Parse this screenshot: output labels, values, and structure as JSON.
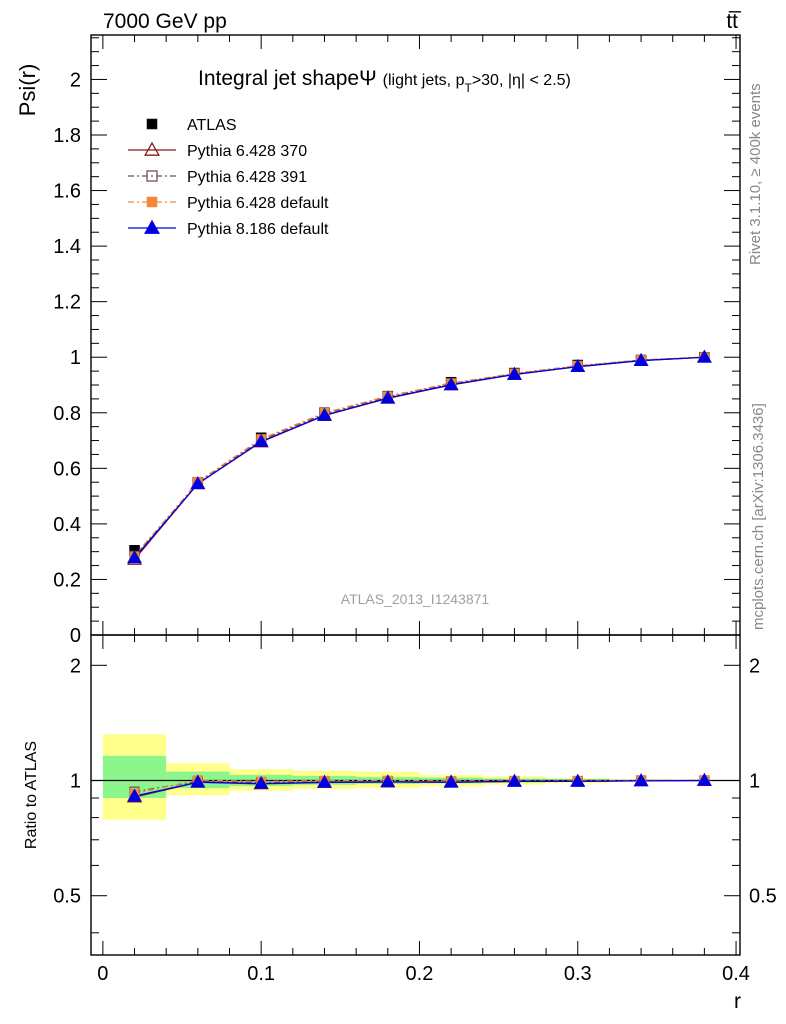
{
  "header": {
    "energy_label": "7000 GeV pp",
    "process_label": "tt̅"
  },
  "side_labels": {
    "rivet": "Rivet 3.1.10, ≥ 400k events",
    "mcplots": "mcplots.cern.ch [arXiv:1306.3436]"
  },
  "chart_data": {
    "type": "line",
    "title": "Integral jet shapeΨ",
    "subtitle": "(light jets, p",
    "subtitle_sub": "T",
    "subtitle_rest": ">30, |η| < 2.5)",
    "watermark": "ATLAS_2013_I1243871",
    "xlabel": "r",
    "ylabel": "Psi(r)",
    "ratio_ylabel": "Ratio to ATLAS",
    "xlim": [
      -0.0075,
      0.4025
    ],
    "ylim": [
      0,
      2.16
    ],
    "ratio_ylim": [
      0.35,
      2.4
    ],
    "x_ticks": [
      0,
      0.1,
      0.2,
      0.3,
      0.4
    ],
    "x_tick_labels": [
      "0",
      "0.1",
      "0.2",
      "0.3",
      "0.4"
    ],
    "y_ticks": [
      0,
      0.2,
      0.4,
      0.6,
      0.8,
      1,
      1.2,
      1.4,
      1.6,
      1.8,
      2
    ],
    "y_tick_labels": [
      "0",
      "0.2",
      "0.4",
      "0.6",
      "0.8",
      "1",
      "1.2",
      "1.4",
      "1.6",
      "1.8",
      "2"
    ],
    "ratio_ticks": [
      0.5,
      1,
      2
    ],
    "ratio_tick_labels": [
      "0.5",
      "1",
      "2"
    ],
    "x": [
      0.02,
      0.06,
      0.1,
      0.14,
      0.18,
      0.22,
      0.26,
      0.3,
      0.34,
      0.38
    ],
    "bin_edges": [
      0,
      0.04,
      0.08,
      0.12,
      0.16,
      0.2,
      0.24,
      0.28,
      0.32,
      0.36,
      0.4
    ],
    "data": {
      "name": "ATLAS",
      "values": [
        0.305,
        0.55,
        0.71,
        0.8,
        0.86,
        0.91,
        0.943,
        0.972,
        0.99,
        1.0
      ],
      "color": "#000000"
    },
    "series": [
      {
        "name": "Pythia 6.428 370",
        "values": [
          0.272,
          0.545,
          0.695,
          0.79,
          0.852,
          0.9,
          0.938,
          0.966,
          0.988,
          1.0
        ],
        "color": "#8b1a1a",
        "marker": "triangle-open",
        "dash": ""
      },
      {
        "name": "Pythia 6.428 391",
        "values": [
          0.285,
          0.548,
          0.702,
          0.796,
          0.857,
          0.905,
          0.94,
          0.968,
          0.99,
          1.0
        ],
        "color": "#7a4f4f",
        "marker": "square-open",
        "dash": "6,3,2,3"
      },
      {
        "name": "Pythia 6.428 default",
        "values": [
          0.282,
          0.552,
          0.706,
          0.8,
          0.86,
          0.907,
          0.942,
          0.97,
          0.99,
          1.0
        ],
        "color": "#f4873a",
        "marker": "square-filled",
        "dash": "6,3,2,3"
      },
      {
        "name": "Pythia 8.186 default",
        "values": [
          0.278,
          0.544,
          0.697,
          0.791,
          0.853,
          0.901,
          0.938,
          0.966,
          0.988,
          1.0
        ],
        "color": "#0000e0",
        "marker": "triangle-filled",
        "dash": ""
      }
    ],
    "ratio_series": [
      [
        0.905,
        0.99,
        0.98,
        0.988,
        0.991,
        0.99,
        0.995,
        0.995,
        0.998,
        1.0
      ],
      [
        0.935,
        0.995,
        0.99,
        0.995,
        0.997,
        0.995,
        0.997,
        0.997,
        1.0,
        1.0
      ],
      [
        0.925,
        1.003,
        0.995,
        1.0,
        1.0,
        0.998,
        0.998,
        0.998,
        1.0,
        1.0
      ],
      [
        0.91,
        0.99,
        0.982,
        0.989,
        0.992,
        0.99,
        0.995,
        0.995,
        0.998,
        1.0
      ]
    ],
    "band_inner": [
      [
        0.9,
        1.16
      ],
      [
        0.955,
        1.055
      ],
      [
        0.968,
        1.035
      ],
      [
        0.975,
        1.028
      ],
      [
        0.98,
        1.022
      ],
      [
        0.983,
        1.018
      ],
      [
        0.988,
        1.012
      ],
      [
        0.992,
        1.009
      ],
      [
        0.996,
        1.004
      ],
      [
        0.998,
        1.002
      ]
    ],
    "band_outer": [
      [
        0.79,
        1.32
      ],
      [
        0.915,
        1.11
      ],
      [
        0.94,
        1.07
      ],
      [
        0.95,
        1.06
      ],
      [
        0.955,
        1.055
      ],
      [
        0.965,
        1.035
      ],
      [
        0.975,
        1.025
      ],
      [
        0.985,
        1.015
      ],
      [
        0.993,
        1.007
      ],
      [
        0.997,
        1.003
      ]
    ],
    "band_colors": {
      "inner": "#8cf58c",
      "outer": "#ffff8c"
    }
  }
}
